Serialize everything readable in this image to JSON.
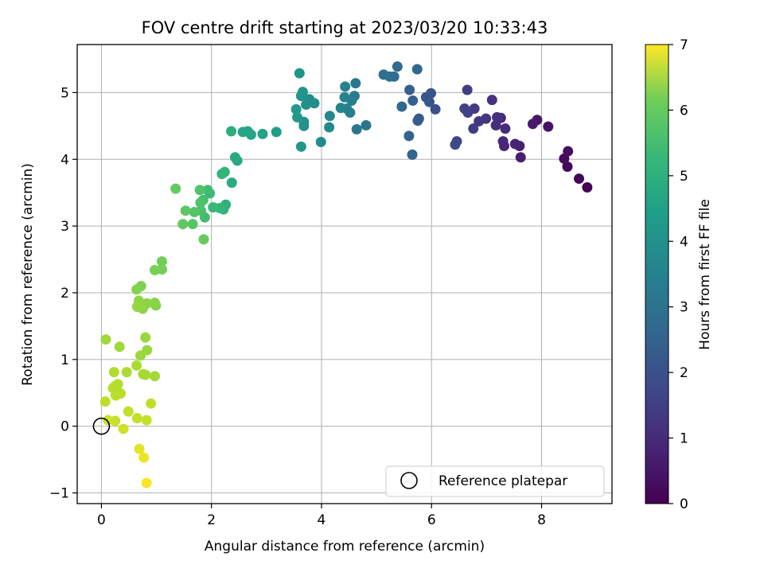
{
  "chart_data": {
    "type": "scatter",
    "title": "FOV centre drift starting at 2023/03/20 10:33:43",
    "xlabel": "Angular distance from reference (arcmin)",
    "ylabel": "Rotation from reference (arcmin)",
    "xlim": [
      -0.44,
      9.28
    ],
    "ylim": [
      -1.16,
      5.72
    ],
    "xticks": [
      0,
      2,
      4,
      6,
      8
    ],
    "yticks": [
      -1,
      0,
      1,
      2,
      3,
      4,
      5
    ],
    "grid": true,
    "colormap": "viridis",
    "colorbar": {
      "label": "Hours from first FF file",
      "range": [
        0,
        7
      ],
      "ticks": [
        0,
        1,
        2,
        3,
        4,
        5,
        6,
        7
      ]
    },
    "legend": {
      "position": "bottom-right",
      "entries": [
        "Reference platepar"
      ]
    },
    "reference_point": {
      "x": 0,
      "y": 0
    },
    "points": [
      {
        "x": 8.83,
        "y": 3.58,
        "c": 0.05
      },
      {
        "x": 8.68,
        "y": 3.71,
        "c": 0.1
      },
      {
        "x": 8.47,
        "y": 3.89,
        "c": 0.15
      },
      {
        "x": 8.41,
        "y": 4.01,
        "c": 0.2
      },
      {
        "x": 8.48,
        "y": 4.12,
        "c": 0.25
      },
      {
        "x": 8.12,
        "y": 4.49,
        "c": 0.35
      },
      {
        "x": 7.92,
        "y": 4.59,
        "c": 0.45
      },
      {
        "x": 7.84,
        "y": 4.53,
        "c": 0.5
      },
      {
        "x": 7.62,
        "y": 4.03,
        "c": 0.6
      },
      {
        "x": 7.6,
        "y": 4.2,
        "c": 0.65
      },
      {
        "x": 7.52,
        "y": 4.23,
        "c": 0.7
      },
      {
        "x": 7.32,
        "y": 4.2,
        "c": 0.75
      },
      {
        "x": 7.3,
        "y": 4.27,
        "c": 0.8
      },
      {
        "x": 7.34,
        "y": 4.46,
        "c": 0.85
      },
      {
        "x": 7.26,
        "y": 4.62,
        "c": 0.9
      },
      {
        "x": 7.17,
        "y": 4.51,
        "c": 0.95
      },
      {
        "x": 7.19,
        "y": 4.63,
        "c": 1.0
      },
      {
        "x": 7.1,
        "y": 4.89,
        "c": 1.05
      },
      {
        "x": 6.99,
        "y": 4.61,
        "c": 1.1
      },
      {
        "x": 6.86,
        "y": 4.57,
        "c": 1.15
      },
      {
        "x": 6.78,
        "y": 4.76,
        "c": 1.2
      },
      {
        "x": 6.76,
        "y": 4.46,
        "c": 1.25
      },
      {
        "x": 6.65,
        "y": 5.04,
        "c": 1.3
      },
      {
        "x": 6.66,
        "y": 4.7,
        "c": 1.35
      },
      {
        "x": 6.6,
        "y": 4.76,
        "c": 1.4
      },
      {
        "x": 6.46,
        "y": 4.27,
        "c": 1.5
      },
      {
        "x": 6.43,
        "y": 4.22,
        "c": 1.55
      },
      {
        "x": 6.07,
        "y": 4.75,
        "c": 1.7
      },
      {
        "x": 5.99,
        "y": 4.99,
        "c": 1.8
      },
      {
        "x": 5.96,
        "y": 4.86,
        "c": 1.85
      },
      {
        "x": 5.9,
        "y": 4.93,
        "c": 1.9
      },
      {
        "x": 5.77,
        "y": 4.61,
        "c": 2.0
      },
      {
        "x": 5.75,
        "y": 4.58,
        "c": 2.05
      },
      {
        "x": 5.66,
        "y": 4.88,
        "c": 2.1
      },
      {
        "x": 5.6,
        "y": 5.04,
        "c": 2.15
      },
      {
        "x": 5.59,
        "y": 4.35,
        "c": 2.2
      },
      {
        "x": 5.65,
        "y": 4.07,
        "c": 2.25
      },
      {
        "x": 5.74,
        "y": 5.35,
        "c": 2.3
      },
      {
        "x": 5.46,
        "y": 4.79,
        "c": 2.35
      },
      {
        "x": 5.38,
        "y": 5.39,
        "c": 2.45
      },
      {
        "x": 5.32,
        "y": 5.24,
        "c": 2.5
      },
      {
        "x": 5.24,
        "y": 5.24,
        "c": 2.55
      },
      {
        "x": 5.13,
        "y": 5.27,
        "c": 2.6
      },
      {
        "x": 4.81,
        "y": 4.51,
        "c": 2.75
      },
      {
        "x": 4.64,
        "y": 4.45,
        "c": 2.8
      },
      {
        "x": 4.62,
        "y": 5.14,
        "c": 2.85
      },
      {
        "x": 4.6,
        "y": 4.95,
        "c": 2.9
      },
      {
        "x": 4.55,
        "y": 4.88,
        "c": 2.95
      },
      {
        "x": 4.52,
        "y": 4.7,
        "c": 3.0
      },
      {
        "x": 4.46,
        "y": 4.76,
        "c": 3.05
      },
      {
        "x": 4.43,
        "y": 5.09,
        "c": 3.1
      },
      {
        "x": 4.42,
        "y": 4.93,
        "c": 3.15
      },
      {
        "x": 4.35,
        "y": 4.77,
        "c": 3.2
      },
      {
        "x": 4.15,
        "y": 4.65,
        "c": 3.25
      },
      {
        "x": 4.14,
        "y": 4.48,
        "c": 3.3
      },
      {
        "x": 3.99,
        "y": 4.26,
        "c": 3.35
      },
      {
        "x": 3.87,
        "y": 4.84,
        "c": 3.4
      },
      {
        "x": 3.78,
        "y": 4.9,
        "c": 3.45
      },
      {
        "x": 3.72,
        "y": 4.82,
        "c": 3.5
      },
      {
        "x": 3.68,
        "y": 4.56,
        "c": 3.55
      },
      {
        "x": 3.68,
        "y": 4.5,
        "c": 3.55
      },
      {
        "x": 3.66,
        "y": 5.01,
        "c": 3.6
      },
      {
        "x": 3.63,
        "y": 4.95,
        "c": 3.62
      },
      {
        "x": 3.6,
        "y": 5.29,
        "c": 3.65
      },
      {
        "x": 3.63,
        "y": 4.19,
        "c": 3.7
      },
      {
        "x": 3.56,
        "y": 4.63,
        "c": 3.75
      },
      {
        "x": 3.54,
        "y": 4.75,
        "c": 3.8
      },
      {
        "x": 3.18,
        "y": 4.41,
        "c": 3.9
      },
      {
        "x": 2.93,
        "y": 4.38,
        "c": 4.0
      },
      {
        "x": 2.72,
        "y": 4.37,
        "c": 4.05
      },
      {
        "x": 2.66,
        "y": 4.42,
        "c": 4.1
      },
      {
        "x": 2.57,
        "y": 4.41,
        "c": 4.15
      },
      {
        "x": 2.47,
        "y": 3.98,
        "c": 4.2
      },
      {
        "x": 2.43,
        "y": 4.03,
        "c": 4.25
      },
      {
        "x": 2.37,
        "y": 3.65,
        "c": 4.3
      },
      {
        "x": 2.36,
        "y": 4.42,
        "c": 4.35
      },
      {
        "x": 2.26,
        "y": 3.32,
        "c": 4.45
      },
      {
        "x": 2.22,
        "y": 3.25,
        "c": 4.5
      },
      {
        "x": 2.24,
        "y": 3.81,
        "c": 4.55
      },
      {
        "x": 2.19,
        "y": 3.78,
        "c": 4.6
      },
      {
        "x": 2.15,
        "y": 3.27,
        "c": 4.65
      },
      {
        "x": 2.03,
        "y": 3.28,
        "c": 4.7
      },
      {
        "x": 1.97,
        "y": 3.49,
        "c": 4.75
      },
      {
        "x": 1.93,
        "y": 3.54,
        "c": 4.8
      },
      {
        "x": 1.88,
        "y": 3.13,
        "c": 4.85
      },
      {
        "x": 1.85,
        "y": 3.39,
        "c": 4.9
      },
      {
        "x": 1.81,
        "y": 3.23,
        "c": 4.95
      },
      {
        "x": 1.8,
        "y": 3.35,
        "c": 5.0
      },
      {
        "x": 1.79,
        "y": 3.54,
        "c": 5.05
      },
      {
        "x": 1.69,
        "y": 3.21,
        "c": 5.1
      },
      {
        "x": 1.66,
        "y": 3.03,
        "c": 5.15
      },
      {
        "x": 1.53,
        "y": 3.23,
        "c": 5.2
      },
      {
        "x": 1.48,
        "y": 3.03,
        "c": 5.25
      },
      {
        "x": 1.35,
        "y": 3.56,
        "c": 5.3
      },
      {
        "x": 1.86,
        "y": 2.8,
        "c": 5.35
      },
      {
        "x": 1.1,
        "y": 2.47,
        "c": 5.45
      },
      {
        "x": 1.1,
        "y": 2.35,
        "c": 5.5
      },
      {
        "x": 0.97,
        "y": 2.34,
        "c": 5.55
      },
      {
        "x": 0.72,
        "y": 2.1,
        "c": 5.6
      },
      {
        "x": 0.64,
        "y": 2.05,
        "c": 5.65
      },
      {
        "x": 0.99,
        "y": 1.81,
        "c": 5.7
      },
      {
        "x": 0.97,
        "y": 1.85,
        "c": 5.72
      },
      {
        "x": 0.83,
        "y": 1.84,
        "c": 5.75
      },
      {
        "x": 0.75,
        "y": 1.76,
        "c": 5.78
      },
      {
        "x": 0.7,
        "y": 1.84,
        "c": 5.8
      },
      {
        "x": 0.68,
        "y": 1.88,
        "c": 5.82
      },
      {
        "x": 0.65,
        "y": 1.79,
        "c": 5.85
      },
      {
        "x": 0.8,
        "y": 1.33,
        "c": 5.9
      },
      {
        "x": 0.83,
        "y": 1.14,
        "c": 5.92
      },
      {
        "x": 0.71,
        "y": 1.06,
        "c": 5.95
      },
      {
        "x": 0.33,
        "y": 1.19,
        "c": 5.97
      },
      {
        "x": 0.08,
        "y": 1.3,
        "c": 6.0
      },
      {
        "x": 0.97,
        "y": 0.75,
        "c": 6.02
      },
      {
        "x": 0.76,
        "y": 0.78,
        "c": 6.05
      },
      {
        "x": 0.8,
        "y": 0.77,
        "c": 6.07
      },
      {
        "x": 0.64,
        "y": 0.91,
        "c": 6.1
      },
      {
        "x": 0.46,
        "y": 0.81,
        "c": 6.12
      },
      {
        "x": 0.23,
        "y": 0.81,
        "c": 6.15
      },
      {
        "x": 0.3,
        "y": 0.63,
        "c": 6.17
      },
      {
        "x": 0.25,
        "y": 0.6,
        "c": 6.2
      },
      {
        "x": 0.21,
        "y": 0.57,
        "c": 6.22
      },
      {
        "x": 0.35,
        "y": 0.49,
        "c": 6.25
      },
      {
        "x": 0.26,
        "y": 0.46,
        "c": 6.27
      },
      {
        "x": 0.07,
        "y": 0.37,
        "c": 6.3
      },
      {
        "x": 0.9,
        "y": 0.34,
        "c": 6.32
      },
      {
        "x": 0.49,
        "y": 0.22,
        "c": 6.35
      },
      {
        "x": 0.65,
        "y": 0.12,
        "c": 6.37
      },
      {
        "x": 0.82,
        "y": 0.09,
        "c": 6.4
      },
      {
        "x": 0.25,
        "y": 0.08,
        "c": 6.42
      },
      {
        "x": 0.12,
        "y": 0.09,
        "c": 6.45
      },
      {
        "x": 0.4,
        "y": -0.04,
        "c": 6.5
      },
      {
        "x": 0.69,
        "y": -0.34,
        "c": 6.7
      },
      {
        "x": 0.77,
        "y": -0.47,
        "c": 6.8
      },
      {
        "x": 0.82,
        "y": -0.85,
        "c": 6.95
      }
    ]
  }
}
